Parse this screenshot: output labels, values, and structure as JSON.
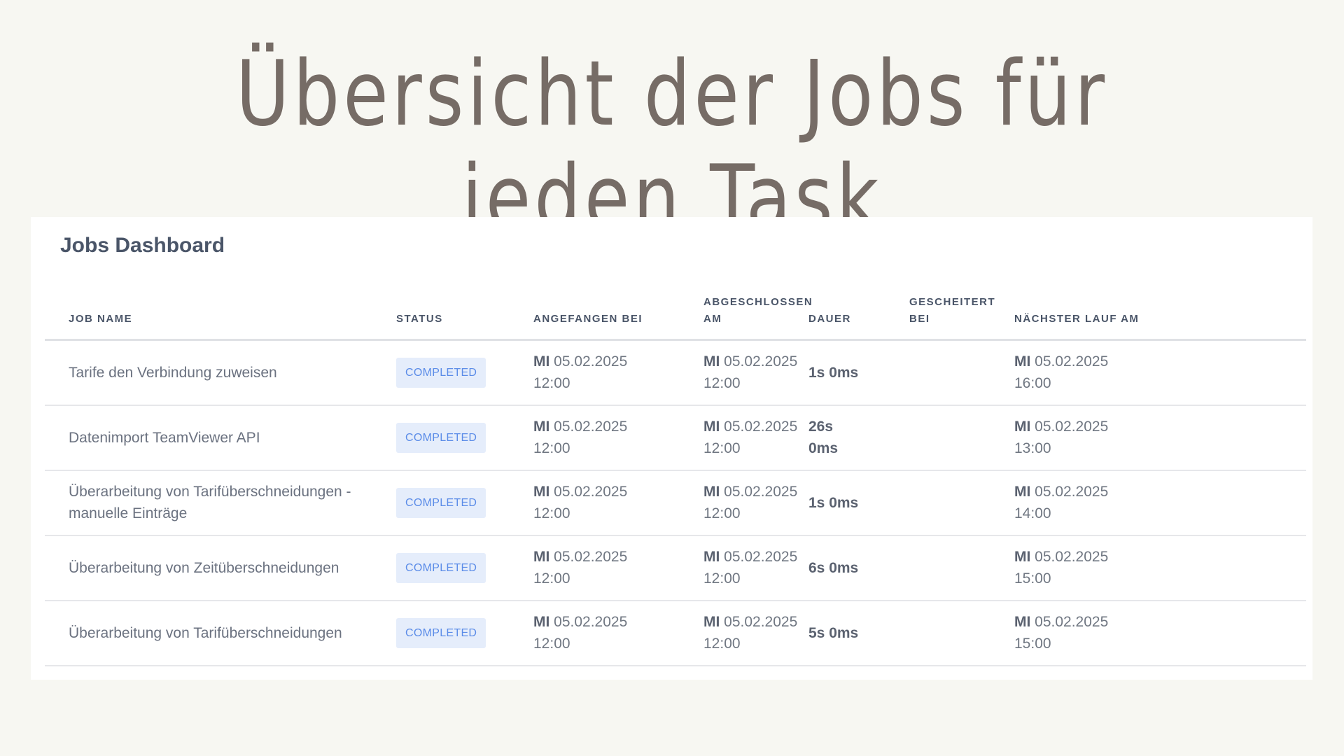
{
  "page_title": "Übersicht der Jobs für jeden Task",
  "dashboard": {
    "title": "Jobs Dashboard",
    "columns": [
      "JOB NAME",
      "STATUS",
      "ANGEFANGEN BEI",
      "ABGESCHLOSSEN AM",
      "DAUER",
      "GESCHEITERT BEI",
      "NÄCHSTER LAUF AM"
    ],
    "rows": [
      {
        "name": "Tarife den Verbindung zuweisen",
        "status": "COMPLETED",
        "started_day": "MI",
        "started_date": "05.02.2025",
        "started_time": "12:00",
        "finished_day": "MI",
        "finished_date": "05.02.2025",
        "finished_time": "12:00",
        "duration": "1s 0ms",
        "failed": "",
        "next_day": "MI",
        "next_date": "05.02.2025",
        "next_time": "16:00"
      },
      {
        "name": "Datenimport TeamViewer API",
        "status": "COMPLETED",
        "started_day": "MI",
        "started_date": "05.02.2025",
        "started_time": "12:00",
        "finished_day": "MI",
        "finished_date": "05.02.2025",
        "finished_time": "12:00",
        "duration": "26s 0ms",
        "failed": "",
        "next_day": "MI",
        "next_date": "05.02.2025",
        "next_time": "13:00"
      },
      {
        "name": "Überarbeitung von Tarifüberschneidungen - manuelle Einträge",
        "status": "COMPLETED",
        "started_day": "MI",
        "started_date": "05.02.2025",
        "started_time": "12:00",
        "finished_day": "MI",
        "finished_date": "05.02.2025",
        "finished_time": "12:00",
        "duration": "1s 0ms",
        "failed": "",
        "next_day": "MI",
        "next_date": "05.02.2025",
        "next_time": "14:00"
      },
      {
        "name": "Überarbeitung von Zeitüberschneidungen",
        "status": "COMPLETED",
        "started_day": "MI",
        "started_date": "05.02.2025",
        "started_time": "12:00",
        "finished_day": "MI",
        "finished_date": "05.02.2025",
        "finished_time": "12:00",
        "duration": "6s 0ms",
        "failed": "",
        "next_day": "MI",
        "next_date": "05.02.2025",
        "next_time": "15:00"
      },
      {
        "name": "Überarbeitung von Tarifüberschneidungen",
        "status": "COMPLETED",
        "started_day": "MI",
        "started_date": "05.02.2025",
        "started_time": "12:00",
        "finished_day": "MI",
        "finished_date": "05.02.2025",
        "finished_time": "12:00",
        "duration": "5s 0ms",
        "failed": "",
        "next_day": "MI",
        "next_date": "05.02.2025",
        "next_time": "15:00"
      }
    ]
  },
  "colors": {
    "badge_bg": "#e5edfb",
    "badge_text": "#5b8ce8",
    "title": "#766c66"
  }
}
